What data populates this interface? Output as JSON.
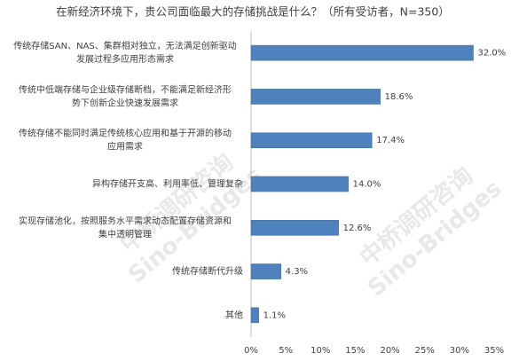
{
  "chart_data": {
    "type": "bar",
    "orientation": "horizontal",
    "title": "在新经济环境下，贵公司面临最大的存储挑战是什么？（所有受访者，N=350）",
    "categories": [
      "传统存储SAN、NAS、集群相对独立，无法满足创新驱动\n发展过程多应用形态需求",
      "传统中低端存储与企业级存储断档，不能满足新经济形\n势下创新企业快速发展需求",
      "传统存储不能同时满足传统核心应用和基于开源的移动\n应用需求",
      "异构存储开支高、利用率低、管理复杂",
      "实现存储池化，按照服务水平需求动态配置存储资源和\n集中透明管理",
      "传统存储断代升级",
      "其他"
    ],
    "values": [
      32.0,
      18.6,
      17.4,
      14.0,
      12.6,
      4.3,
      1.1
    ],
    "value_labels": [
      "32.0%",
      "18.6%",
      "17.4%",
      "14.0%",
      "12.6%",
      "4.3%",
      "1.1%"
    ],
    "color": "#4f81bd",
    "xlim": [
      0,
      35
    ],
    "xticks": [
      {
        "value": 0,
        "label": "0%"
      },
      {
        "value": 5,
        "label": "5%"
      },
      {
        "value": 10,
        "label": "10%"
      },
      {
        "value": 15,
        "label": "15%"
      },
      {
        "value": 20,
        "label": "20%"
      },
      {
        "value": 25,
        "label": "25%"
      },
      {
        "value": 30,
        "label": "30%"
      },
      {
        "value": 35,
        "label": "35%"
      }
    ],
    "watermark": [
      "中桥调研咨询",
      "Sino-Bridges"
    ]
  }
}
